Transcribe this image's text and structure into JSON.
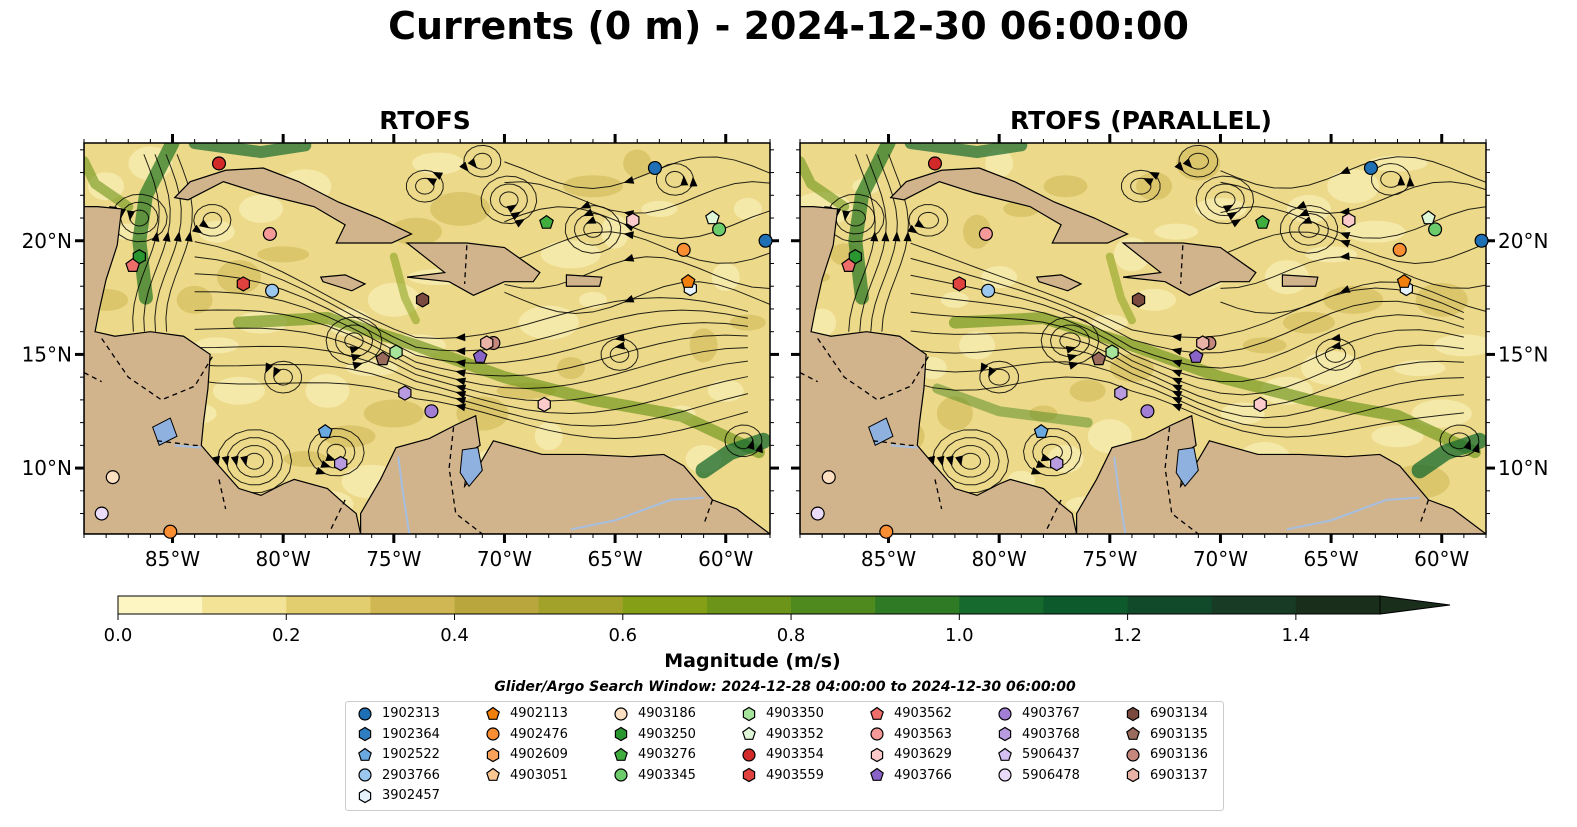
{
  "title": "Currents (0 m) - 2024-12-30 06:00:00",
  "panels": [
    {
      "title": "RTOFS"
    },
    {
      "title": "RTOFS (PARALLEL)"
    }
  ],
  "axes": {
    "lon_labels": [
      "85°W",
      "80°W",
      "75°W",
      "70°W",
      "65°W",
      "60°W"
    ],
    "lat_labels": [
      "20°N",
      "15°N",
      "10°N"
    ]
  },
  "colorbar": {
    "label": "Magnitude (m/s)",
    "ticks": [
      "0.0",
      "0.2",
      "0.4",
      "0.6",
      "0.8",
      "1.0",
      "1.2",
      "1.4"
    ],
    "range": [
      0,
      1.5
    ],
    "colors": [
      "#fdf6c3",
      "#f2e396",
      "#e2cd6f",
      "#d0b753",
      "#b9a63c",
      "#a2a12a",
      "#85a017",
      "#6c9419",
      "#4f8a1e",
      "#2f7a24",
      "#176a2e",
      "#0d5a2c",
      "#114a2a",
      "#173b24",
      "#1a2e1c"
    ]
  },
  "search_window": "Glider/Argo Search Window: 2024-12-28 04:00:00 to 2024-12-30 06:00:00",
  "legend": [
    {
      "id": "1902313",
      "shape": "circle",
      "color": "#1f6fb4"
    },
    {
      "id": "1902364",
      "shape": "hexagon",
      "color": "#2f7ec1"
    },
    {
      "id": "1902522",
      "shape": "pentagon",
      "color": "#6aa9e0"
    },
    {
      "id": "2903766",
      "shape": "circle",
      "color": "#9cc8ef"
    },
    {
      "id": "3902457",
      "shape": "hexagon",
      "color": "#e6f2fb"
    },
    {
      "id": "4902113",
      "shape": "pentagon",
      "color": "#f07f0c"
    },
    {
      "id": "4902476",
      "shape": "circle",
      "color": "#fb8e32"
    },
    {
      "id": "4902609",
      "shape": "hexagon",
      "color": "#fba25a"
    },
    {
      "id": "4903051",
      "shape": "pentagon",
      "color": "#fcc793"
    },
    {
      "id": "4903186",
      "shape": "circle",
      "color": "#fde0c2"
    },
    {
      "id": "4903250",
      "shape": "hexagon",
      "color": "#2a9630"
    },
    {
      "id": "4903276",
      "shape": "pentagon",
      "color": "#3fae3f"
    },
    {
      "id": "4903345",
      "shape": "circle",
      "color": "#6ccb6a"
    },
    {
      "id": "4903350",
      "shape": "hexagon",
      "color": "#a6e49c"
    },
    {
      "id": "4903352",
      "shape": "pentagon",
      "color": "#dff7d7"
    },
    {
      "id": "4903354",
      "shape": "circle",
      "color": "#d12a29"
    },
    {
      "id": "4903559",
      "shape": "hexagon",
      "color": "#e0423f"
    },
    {
      "id": "4903562",
      "shape": "pentagon",
      "color": "#ee6e6b"
    },
    {
      "id": "4903563",
      "shape": "circle",
      "color": "#f59a99"
    },
    {
      "id": "4903629",
      "shape": "hexagon",
      "color": "#fbcaca"
    },
    {
      "id": "4903766",
      "shape": "pentagon",
      "color": "#8a63c8"
    },
    {
      "id": "4903767",
      "shape": "circle",
      "color": "#a27fd4"
    },
    {
      "id": "4903768",
      "shape": "hexagon",
      "color": "#b99be0"
    },
    {
      "id": "5906437",
      "shape": "pentagon",
      "color": "#d4bff0"
    },
    {
      "id": "5906478",
      "shape": "circle",
      "color": "#eadcf9"
    },
    {
      "id": "6903134",
      "shape": "hexagon",
      "color": "#7b4a3f"
    },
    {
      "id": "6903135",
      "shape": "pentagon",
      "color": "#9a6a5d"
    },
    {
      "id": "6903136",
      "shape": "circle",
      "color": "#c6877c"
    },
    {
      "id": "6903137",
      "shape": "hexagon",
      "color": "#e9b3a8"
    }
  ],
  "markers": [
    {
      "id": "1902313",
      "lon": -63.2,
      "lat": 23.2
    },
    {
      "id": "1902313",
      "lon": -58.2,
      "lat": 20.0
    },
    {
      "id": "1902522",
      "lon": -78.1,
      "lat": 11.6
    },
    {
      "id": "2903766",
      "lon": -80.5,
      "lat": 17.8
    },
    {
      "id": "3902457",
      "lon": -61.6,
      "lat": 17.9
    },
    {
      "id": "4902113",
      "lon": -61.7,
      "lat": 18.2
    },
    {
      "id": "4902476",
      "lon": -61.9,
      "lat": 19.6
    },
    {
      "id": "4902476",
      "lon": -85.1,
      "lat": 7.2
    },
    {
      "id": "4903186",
      "lon": -87.7,
      "lat": 9.6
    },
    {
      "id": "4903250",
      "lon": -86.5,
      "lat": 19.3
    },
    {
      "id": "4903276",
      "lon": -68.1,
      "lat": 20.8
    },
    {
      "id": "4903345",
      "lon": -60.3,
      "lat": 20.5
    },
    {
      "id": "4903350",
      "lon": -74.9,
      "lat": 15.1
    },
    {
      "id": "4903352",
      "lon": -60.6,
      "lat": 21.0
    },
    {
      "id": "4903354",
      "lon": -82.9,
      "lat": 23.4
    },
    {
      "id": "4903559",
      "lon": -81.8,
      "lat": 18.1
    },
    {
      "id": "4903562",
      "lon": -86.8,
      "lat": 18.9
    },
    {
      "id": "4903563",
      "lon": -80.6,
      "lat": 20.3
    },
    {
      "id": "4903629",
      "lon": -68.2,
      "lat": 12.8
    },
    {
      "id": "4903629",
      "lon": -64.2,
      "lat": 20.9
    },
    {
      "id": "4903766",
      "lon": -71.1,
      "lat": 14.9
    },
    {
      "id": "4903767",
      "lon": -73.3,
      "lat": 12.5
    },
    {
      "id": "4903768",
      "lon": -74.5,
      "lat": 13.3
    },
    {
      "id": "4903768",
      "lon": -77.4,
      "lat": 10.2
    },
    {
      "id": "5906478",
      "lon": -88.2,
      "lat": 8.0
    },
    {
      "id": "6903134",
      "lon": -73.7,
      "lat": 17.4
    },
    {
      "id": "6903135",
      "lon": -75.5,
      "lat": 14.8
    },
    {
      "id": "6903136",
      "lon": -70.5,
      "lat": 15.5
    },
    {
      "id": "6903137",
      "lon": -70.8,
      "lat": 15.5
    }
  ]
}
